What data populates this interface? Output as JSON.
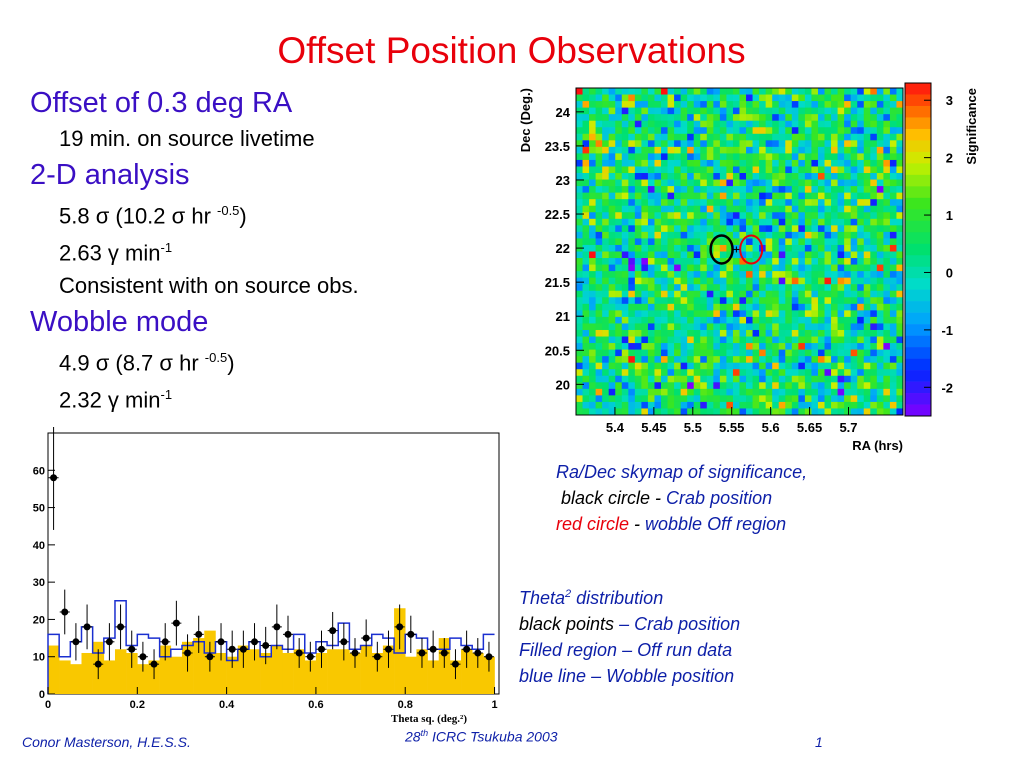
{
  "slide": {
    "title": "Offset Position Observations",
    "bullets": {
      "offset_heading": "Offset of 0.3 deg RA",
      "offset_livetime": "19 min. on source livetime",
      "analysis_heading": "2-D analysis",
      "analysis_sig_pre": "5.8 σ (10.2 σ hr ",
      "analysis_sig_sup": "-0.5",
      "analysis_sig_post": ")",
      "analysis_rate_pre": "2.63 γ min",
      "analysis_rate_sup": "-1",
      "analysis_consistent": "Consistent with on source obs.",
      "wobble_heading": "Wobble mode",
      "wobble_sig_pre": "4.9 σ (8.7 σ hr ",
      "wobble_sig_sup": "-0.5",
      "wobble_sig_post": ")",
      "wobble_rate_pre": "2.32 γ min",
      "wobble_rate_sup": "-1"
    },
    "skymap_caption": {
      "line1": "Ra/Dec skymap of significance,",
      "line2_black": "black circle",
      "line2_sep": " - ",
      "line2_rest": "Crab position",
      "line3_red": "red circle",
      "line3_sep": " - ",
      "line3_rest": "wobble Off region"
    },
    "theta_caption": {
      "line1_pre": "Theta",
      "line1_sup": "2",
      "line1_post": " distribution",
      "line2_black": "black points",
      "line2_rest": " – Crab position",
      "line3_black": "Filled region",
      "line3_rest": " – Off run data",
      "line4_black": "blue line",
      "line4_rest": " – Wobble position"
    },
    "footer": {
      "author": "Conor Masterson, H.E.S.S.",
      "conf_pre": "28",
      "conf_sup": "th",
      "conf_post": " ICRC Tsukuba 2003",
      "page": "1"
    }
  },
  "chart_data": [
    {
      "type": "heatmap",
      "xlabel": "RA (hrs)",
      "ylabel": "Dec (Deg.)",
      "colorbar_label": "Significance",
      "xlim": [
        5.35,
        5.77
      ],
      "ylim": [
        19.55,
        24.35
      ],
      "zlim": [
        -2.5,
        3.3
      ],
      "x_ticks": [
        "5.4",
        "5.45",
        "5.5",
        "5.55",
        "5.6",
        "5.65",
        "5.7"
      ],
      "y_ticks": [
        "20",
        "20.5",
        "21",
        "21.5",
        "22",
        "22.5",
        "23",
        "23.5",
        "24"
      ],
      "colorbar_ticks": [
        "-2",
        "-1",
        "0",
        "1",
        "2",
        "3"
      ],
      "grid": false,
      "colors": {
        "low": "#8000ff",
        "mid": "#00e070",
        "high": "#ff1010"
      },
      "markers": [
        {
          "name": "Crab position",
          "ra": 5.537,
          "dec": 21.98,
          "color": "#000000"
        },
        {
          "name": "wobble Off region",
          "ra": 5.575,
          "dec": 21.98,
          "color": "#e8000b"
        }
      ]
    },
    {
      "type": "bar",
      "xlabel": "Theta sq. (deg.²)",
      "ylabel": "",
      "xlim": [
        0,
        1.01
      ],
      "ylim": [
        0,
        70
      ],
      "x_ticks": [
        "0",
        "0.2",
        "0.4",
        "0.6",
        "0.8",
        "1"
      ],
      "y_ticks": [
        "0",
        "10",
        "20",
        "30",
        "40",
        "50",
        "60"
      ],
      "bin_width": 0.025,
      "off_run_filled": [
        13,
        9,
        8,
        11,
        14,
        9,
        12,
        11,
        8,
        9,
        13,
        10,
        14,
        15,
        17,
        11,
        10,
        13,
        12,
        11,
        13,
        11,
        12,
        9,
        11,
        12,
        12,
        11,
        13,
        11,
        13,
        23,
        10,
        12,
        9,
        15,
        9,
        12,
        11,
        10
      ],
      "wobble_line": [
        16,
        10,
        14,
        18,
        11,
        15,
        25,
        13,
        16,
        15,
        10,
        12,
        13,
        14,
        11,
        14,
        9,
        12,
        14,
        10,
        13,
        12,
        16,
        11,
        14,
        13,
        19,
        12,
        13,
        16,
        15,
        11,
        16,
        15,
        12,
        12,
        15,
        13,
        12,
        16
      ],
      "crab_points_x": [
        0.0125,
        0.0375,
        0.0625,
        0.0875,
        0.1125,
        0.1375,
        0.1625,
        0.1875,
        0.2125,
        0.2375,
        0.2625,
        0.2875,
        0.3125,
        0.3375,
        0.3625,
        0.3875,
        0.4125,
        0.4375,
        0.4625,
        0.4875,
        0.5125,
        0.5375,
        0.5625,
        0.5875,
        0.6125,
        0.6375,
        0.6625,
        0.6875,
        0.7125,
        0.7375,
        0.7625,
        0.7875,
        0.8125,
        0.8375,
        0.8625,
        0.8875,
        0.9125,
        0.9375,
        0.9625,
        0.9875
      ],
      "crab_points_y": [
        58,
        22,
        14,
        18,
        8,
        14,
        18,
        12,
        10,
        8,
        14,
        19,
        11,
        16,
        10,
        14,
        12,
        12,
        14,
        13,
        18,
        16,
        11,
        10,
        12,
        17,
        14,
        11,
        15,
        10,
        12,
        18,
        16,
        11,
        12,
        11,
        8,
        12,
        11,
        10
      ],
      "crab_errors": [
        14,
        6,
        5,
        6,
        4,
        5,
        6,
        5,
        4,
        4,
        5,
        6,
        5,
        5,
        4,
        5,
        5,
        5,
        5,
        5,
        6,
        5,
        4,
        4,
        5,
        5,
        5,
        4,
        5,
        4,
        5,
        6,
        5,
        4,
        5,
        4,
        4,
        5,
        4,
        4
      ]
    }
  ]
}
